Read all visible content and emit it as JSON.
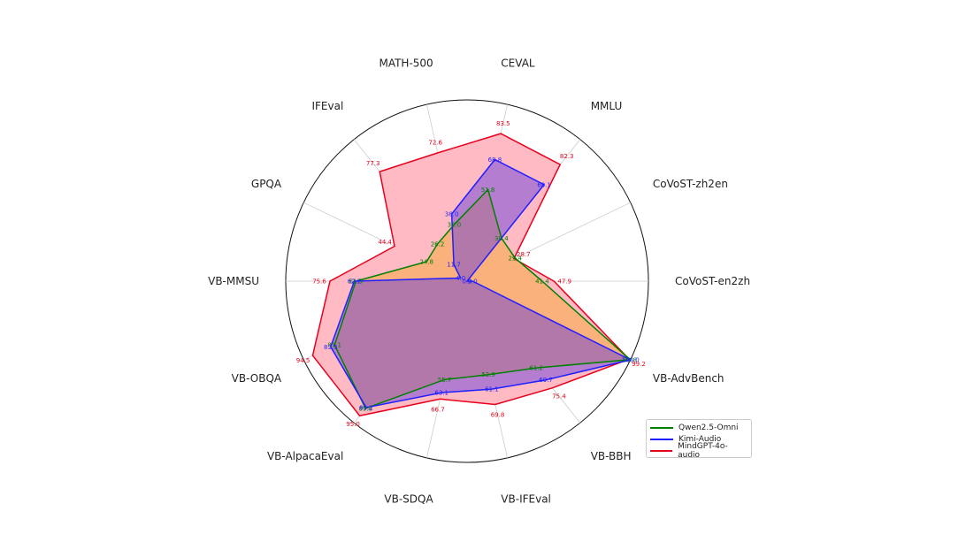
{
  "chart_data": {
    "type": "radar",
    "axes": [
      "CoVoST-en2zh",
      "CoVoST-zh2en",
      "MMLU",
      "CEVAL",
      "MATH-500",
      "IFEval",
      "GPQA",
      "VB-MMSU",
      "VB-OBQA",
      "VB-AlpacaEval",
      "VB-SDQA",
      "VB-IFEval",
      "VB-BBH",
      "VB-AdvBench"
    ],
    "max": 100,
    "series": [
      {
        "name": "Qwen2.5-Omni",
        "color": "#008000",
        "fill": "#f5a623",
        "values": [
          41.4,
          29.4,
          30.4,
          51.8,
          32.0,
          26.2,
          24.8,
          61.3,
          81.1,
          89.8,
          55.7,
          52.9,
          61.2,
          99.8
        ],
        "labels": [
          "41.4",
          "29.4",
          "30.4",
          "51.8",
          "32.0",
          "26.2",
          "24.8",
          "61.3",
          "81.1",
          "89.8",
          "55.7",
          "52.9",
          "61.2",
          "99.8"
        ]
      },
      {
        "name": "Kimi-Audio",
        "color": "#1f1fff",
        "fill": "#6b3fd9",
        "values": [
          3.0,
          0.0,
          68.1,
          68.8,
          38.0,
          11.7,
          4.0,
          62.2,
          83.5,
          89.2,
          63.1,
          61.1,
          69.7,
          100.0
        ],
        "labels": [
          "3.0",
          "0.0",
          "68.1",
          "68.8",
          "38.0",
          "11.7",
          "4.0",
          "62.2",
          "83.5",
          "89.2",
          "63.1",
          "61.1",
          "69.7",
          "100.0"
        ]
      },
      {
        "name": "MindGPT-4o-audio",
        "color": "#e8001c",
        "fill": "#ffb6c1",
        "values": [
          47.9,
          28.7,
          82.3,
          83.5,
          72.6,
          77.3,
          44.4,
          75.6,
          94.5,
          95.0,
          66.7,
          69.8,
          75.4,
          99.2
        ],
        "labels": [
          "47.9",
          "28.7",
          "82.3",
          "83.5",
          "72.6",
          "77.3",
          "44.4",
          "75.6",
          "94.5",
          "95.0",
          "66.7",
          "69.8",
          "75.4",
          "99.2"
        ]
      }
    ],
    "grid": true,
    "legend": "bottom-right"
  }
}
